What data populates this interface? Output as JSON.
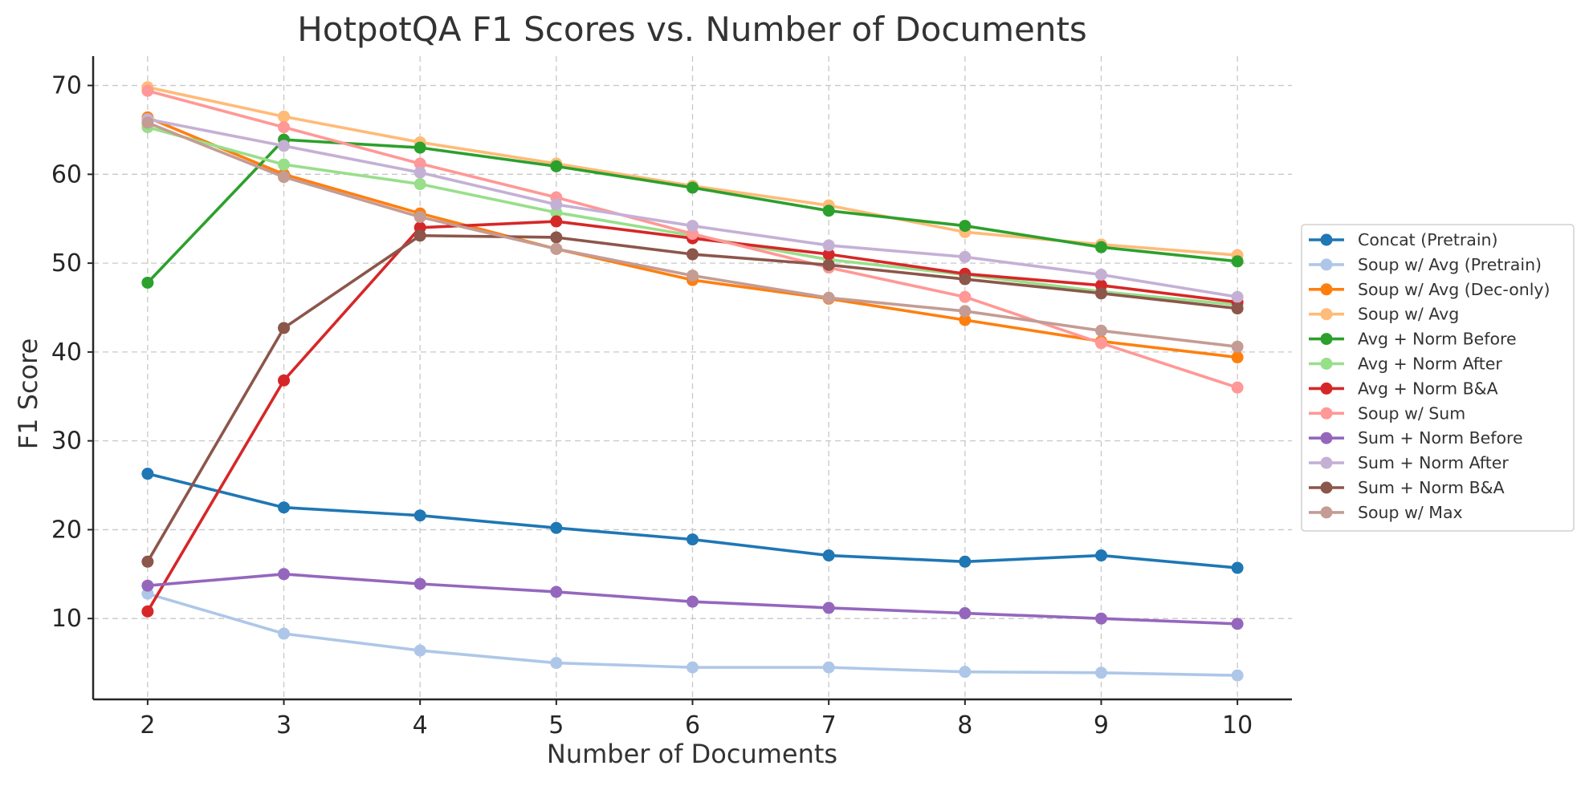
{
  "chart_data": {
    "type": "line",
    "title": "HotpotQA F1 Scores vs. Number of Documents",
    "xlabel": "Number of Documents",
    "ylabel": "F1 Score",
    "x": [
      2,
      3,
      4,
      5,
      6,
      7,
      8,
      9,
      10
    ],
    "xlim": [
      1.6,
      10.4
    ],
    "ylim": [
      0.9,
      73.3
    ],
    "yticks": [
      10,
      20,
      30,
      40,
      50,
      60,
      70
    ],
    "grid": true,
    "legend_position": "center-right",
    "series": [
      {
        "name": "Concat (Pretrain)",
        "color": "#1f77b4",
        "values": [
          26.3,
          22.5,
          21.6,
          20.2,
          18.9,
          17.1,
          16.4,
          17.1,
          15.7
        ]
      },
      {
        "name": "Soup w/ Avg (Pretrain)",
        "color": "#aec7e8",
        "values": [
          12.8,
          8.3,
          6.4,
          5.0,
          4.5,
          4.5,
          4.0,
          3.9,
          3.6
        ]
      },
      {
        "name": "Soup w/ Avg (Dec-only)",
        "color": "#ff7f0e",
        "values": [
          66.4,
          60.0,
          55.6,
          51.6,
          48.1,
          46.0,
          43.6,
          41.2,
          39.4
        ]
      },
      {
        "name": "Soup w/ Avg",
        "color": "#ffbb78",
        "values": [
          69.8,
          66.5,
          63.6,
          61.2,
          58.7,
          56.5,
          53.5,
          52.1,
          50.9
        ]
      },
      {
        "name": "Avg + Norm Before",
        "color": "#2ca02c",
        "values": [
          47.8,
          63.9,
          63.0,
          60.9,
          58.5,
          55.9,
          54.2,
          51.8,
          50.2
        ]
      },
      {
        "name": "Avg + Norm After",
        "color": "#98df8a",
        "values": [
          65.3,
          61.1,
          58.9,
          55.7,
          53.1,
          50.4,
          48.7,
          46.8,
          45.3
        ]
      },
      {
        "name": "Avg + Norm B&A",
        "color": "#d62728",
        "values": [
          10.8,
          36.8,
          54.0,
          54.7,
          52.8,
          51.0,
          48.8,
          47.5,
          45.6
        ]
      },
      {
        "name": "Soup w/ Sum",
        "color": "#ff9896",
        "values": [
          69.4,
          65.3,
          61.2,
          57.4,
          53.3,
          49.5,
          46.2,
          41.0,
          36.0
        ]
      },
      {
        "name": "Sum + Norm Before",
        "color": "#9467bd",
        "values": [
          13.7,
          15.0,
          13.9,
          13.0,
          11.9,
          11.2,
          10.6,
          10.0,
          9.4
        ]
      },
      {
        "name": "Sum + Norm After",
        "color": "#c5b0d5",
        "values": [
          66.2,
          63.2,
          60.2,
          56.6,
          54.2,
          52.0,
          50.7,
          48.7,
          46.2
        ]
      },
      {
        "name": "Sum + Norm B&A",
        "color": "#8c564b",
        "values": [
          16.4,
          42.7,
          53.1,
          52.9,
          51.0,
          49.8,
          48.2,
          46.6,
          44.9
        ]
      },
      {
        "name": "Soup w/ Max",
        "color": "#c49c94",
        "values": [
          65.8,
          59.7,
          55.2,
          51.6,
          48.6,
          46.1,
          44.6,
          42.4,
          40.6
        ]
      }
    ]
  }
}
